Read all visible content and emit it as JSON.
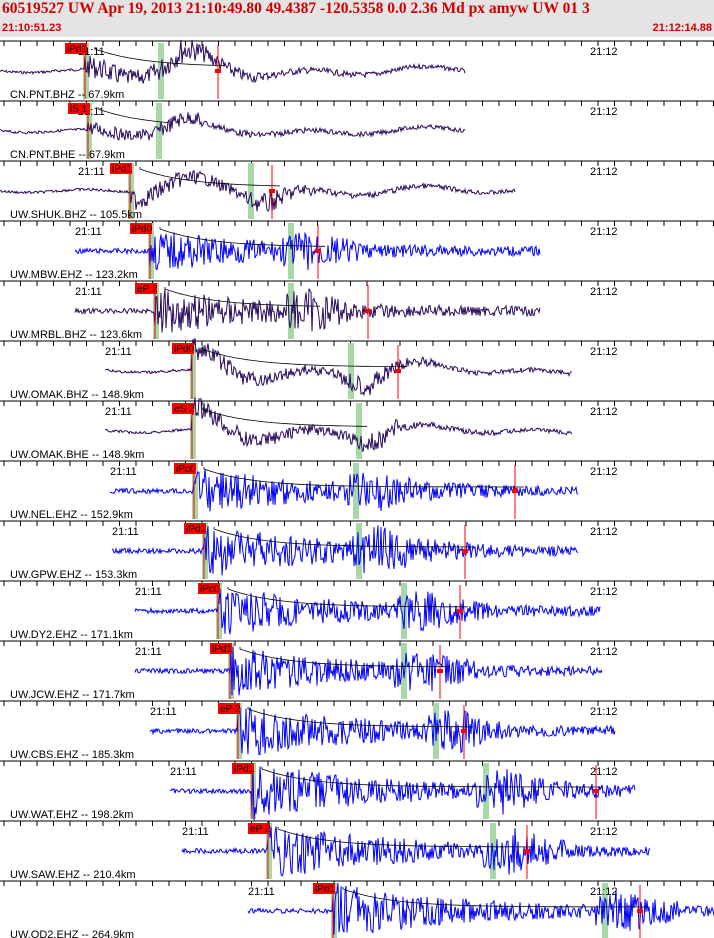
{
  "header": {
    "title": "60519527 UW Apr 19, 2013 21:10:49.80    49.4387 -120.5358   0.0 2.36 Md px amyw UW 01    3",
    "start_time": "21:10:51.23",
    "end_time": "21:12:14.88"
  },
  "tick_labels": [
    "21:11",
    "21:12"
  ],
  "colors": {
    "trace_bh": "#2a0a5e",
    "trace_eh": "#0000ff",
    "pick_box": "#ff0000",
    "pick_window": "#a8d8a8",
    "header_text": "#d00000"
  },
  "traces": [
    {
      "label": "CN.PNT.BHZ -- 67.9km",
      "pick": "iPd1",
      "type": "bh"
    },
    {
      "label": "CN.PNT.BHE -- 67.9km",
      "pick": "iS 1",
      "type": "bh"
    },
    {
      "label": "UW.SHUK.BHZ -- 105.5km",
      "pick": "iPd1",
      "type": "bh"
    },
    {
      "label": "UW.MBW.EHZ -- 123.2km",
      "pick": "iPd0",
      "type": "eh"
    },
    {
      "label": "UW.MRBL.BHZ -- 123.6km",
      "pick": "eP 2",
      "type": "bh"
    },
    {
      "label": "UW.OMAK.BHZ -- 148.9km",
      "pick": "iPd0",
      "type": "bh"
    },
    {
      "label": "UW.OMAK.BHE -- 148.9km",
      "pick": "eS 2",
      "type": "bh"
    },
    {
      "label": "UW.NEL.EHZ -- 152.9km",
      "pick": "iPc0",
      "type": "eh"
    },
    {
      "label": "UW.GPW.EHZ -- 153.3km",
      "pick": "iPd1",
      "type": "eh"
    },
    {
      "label": "UW.DY2.EHZ -- 171.1km",
      "pick": "iPc0",
      "type": "eh"
    },
    {
      "label": "UW.JCW.EHZ -- 171.7km",
      "pick": "iPd1",
      "type": "eh"
    },
    {
      "label": "UW.CBS.EHZ -- 185.3km",
      "pick": "eP 2",
      "type": "eh"
    },
    {
      "label": "UW.WAT.EHZ -- 198.2km",
      "pick": "iPd1",
      "type": "eh"
    },
    {
      "label": "UW.SAW.EHZ -- 210.4km",
      "pick": "eP 2",
      "type": "eh"
    },
    {
      "label": "UW.OD2.EHZ -- 264.9km",
      "pick": "iPd1",
      "type": "eh"
    }
  ]
}
